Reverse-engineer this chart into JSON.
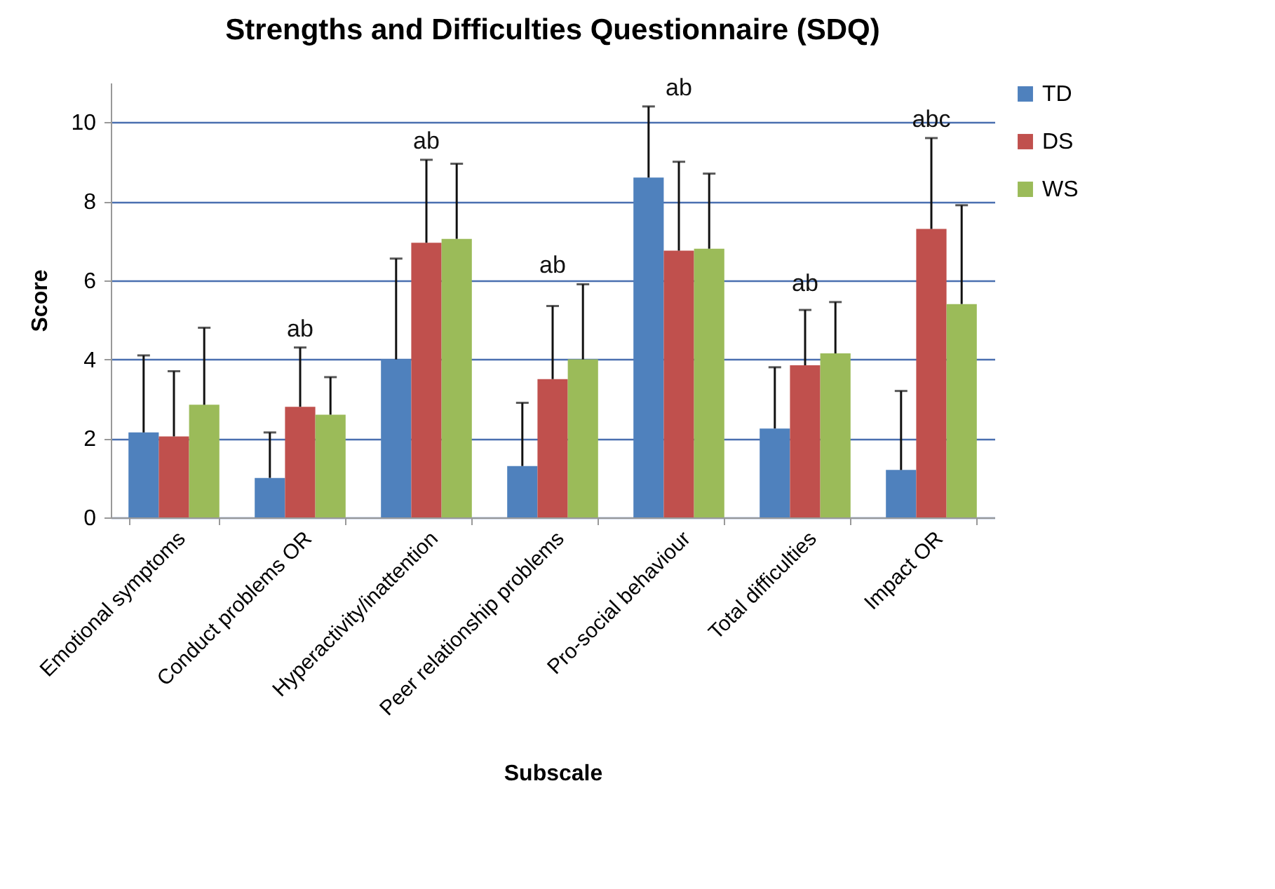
{
  "chart_data": {
    "type": "bar",
    "title": "Strengths and Difficulties Questionnaire (SDQ)",
    "xlabel": "Subscale",
    "ylabel": "Score",
    "categories": [
      "Emotional symptoms",
      "Conduct problems OR",
      "Hyperactivity/inattention",
      "Peer relationship problems",
      "Pro-social behaviour",
      "Total difficulties",
      "Impact OR"
    ],
    "series": [
      {
        "name": "TD",
        "color": "#4f81bd",
        "values": [
          2.15,
          1.0,
          4.0,
          1.3,
          8.6,
          2.25,
          1.2
        ],
        "errors": [
          [
            2.15,
            4.1
          ],
          [
            1.0,
            2.15
          ],
          [
            4.0,
            6.55
          ],
          [
            1.3,
            2.9
          ],
          [
            8.6,
            10.4
          ],
          [
            2.25,
            3.8
          ],
          [
            1.2,
            3.2
          ]
        ]
      },
      {
        "name": "DS",
        "color": "#c0504d",
        "values": [
          2.05,
          2.8,
          6.95,
          3.5,
          6.75,
          3.85,
          7.3
        ],
        "errors": [
          [
            2.05,
            3.7
          ],
          [
            2.8,
            4.3
          ],
          [
            6.95,
            9.05
          ],
          [
            3.5,
            5.35
          ],
          [
            6.75,
            9.0
          ],
          [
            3.85,
            5.25
          ],
          [
            7.3,
            9.6
          ]
        ]
      },
      {
        "name": "WS",
        "color": "#9bbb59",
        "values": [
          2.85,
          2.6,
          7.05,
          4.0,
          6.8,
          4.15,
          5.4
        ],
        "errors": [
          [
            2.85,
            4.8
          ],
          [
            2.6,
            3.55
          ],
          [
            7.05,
            8.95
          ],
          [
            4.0,
            5.9
          ],
          [
            6.8,
            8.7
          ],
          [
            4.15,
            5.45
          ],
          [
            5.4,
            7.9
          ]
        ]
      }
    ],
    "annotations": [
      "ab",
      "ab",
      "ab",
      "ab",
      "ab",
      "abc"
    ],
    "ylim": [
      0,
      11
    ],
    "yticks": [
      0,
      2,
      4,
      6,
      8,
      10
    ],
    "grid": "y",
    "legend": "right"
  }
}
